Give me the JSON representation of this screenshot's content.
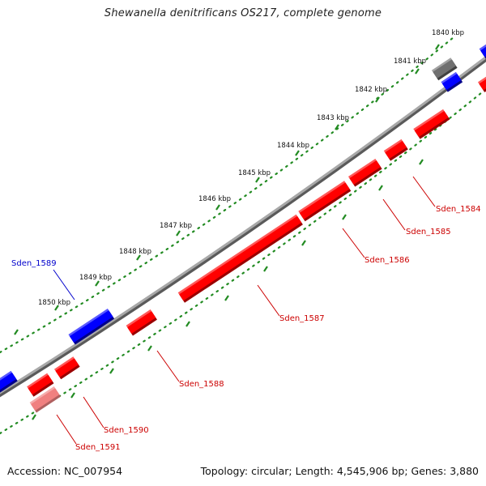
{
  "header": {
    "title": "Shewanella denitrificans OS217, complete genome"
  },
  "footer": {
    "accession": "Accession: NC_007954",
    "summary": "Topology: circular; Length: 4,545,906 bp; Genes: 3,880"
  },
  "colors": {
    "forward_strand": "#ff0000",
    "reverse_strand": "#0000ff",
    "selected_gene": "#f08080",
    "other_feature": "#707070",
    "backbone": "#808080",
    "tick_marks": "#228b22",
    "forward_label": "#cc0000",
    "reverse_label": "#0000cc"
  },
  "scale_ticks": [
    {
      "label": "1840 kbp"
    },
    {
      "label": "1841 kbp"
    },
    {
      "label": "1842 kbp"
    },
    {
      "label": "1843 kbp"
    },
    {
      "label": "1844 kbp"
    },
    {
      "label": "1845 kbp"
    },
    {
      "label": "1846 kbp"
    },
    {
      "label": "1847 kbp"
    },
    {
      "label": "1848 kbp"
    },
    {
      "label": "1849 kbp"
    },
    {
      "label": "1850 kbp"
    }
  ],
  "gene_labels": [
    {
      "name": "Sden_1584",
      "strand": "forward"
    },
    {
      "name": "Sden_1585",
      "strand": "forward"
    },
    {
      "name": "Sden_1586",
      "strand": "forward"
    },
    {
      "name": "Sden_1587",
      "strand": "forward"
    },
    {
      "name": "Sden_1588",
      "strand": "forward"
    },
    {
      "name": "Sden_1589",
      "strand": "reverse"
    },
    {
      "name": "Sden_1590",
      "strand": "forward"
    },
    {
      "name": "Sden_1591",
      "strand": "forward"
    }
  ]
}
